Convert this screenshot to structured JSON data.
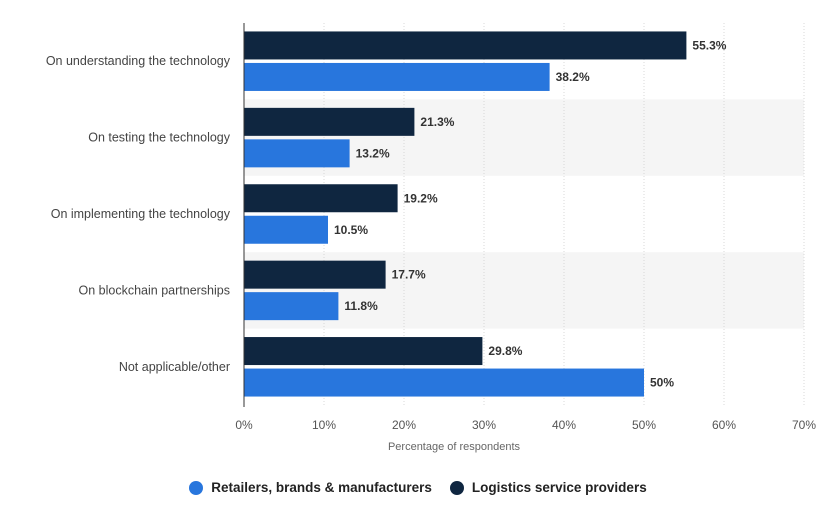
{
  "chart_data": {
    "type": "bar",
    "orientation": "horizontal",
    "categories": [
      "On understanding the technology",
      "On testing the technology",
      "On implementing the technology",
      "On blockchain partnerships",
      "Not applicable/other"
    ],
    "series": [
      {
        "name": "Logistics service providers",
        "color": "#0f2640",
        "values": [
          55.3,
          21.3,
          19.2,
          17.7,
          29.8
        ],
        "labels": [
          "55.3%",
          "21.3%",
          "19.2%",
          "17.7%",
          "29.8%"
        ]
      },
      {
        "name": "Retailers, brands & manufacturers",
        "color": "#2876dd",
        "values": [
          38.2,
          13.2,
          10.5,
          11.8,
          50
        ],
        "labels": [
          "38.2%",
          "13.2%",
          "10.5%",
          "11.8%",
          "50%"
        ]
      }
    ],
    "xlabel": "Percentage of respondents",
    "xlim": [
      0,
      70
    ],
    "ticks": [
      0,
      10,
      20,
      30,
      40,
      50,
      60,
      70
    ],
    "tick_labels": [
      "0%",
      "10%",
      "20%",
      "30%",
      "40%",
      "50%",
      "60%",
      "70%"
    ],
    "grid": true,
    "legend_position": "bottom",
    "legend_order": [
      "Retailers, brands & manufacturers",
      "Logistics service providers"
    ]
  }
}
